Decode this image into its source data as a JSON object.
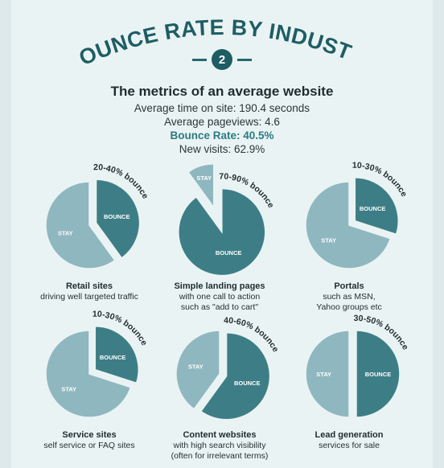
{
  "title": "BOUNCE RATE BY INDUSTRY",
  "badge": "2",
  "metrics": {
    "heading": "The metrics of an average website",
    "time_on_site": "Average time on site: 190.4 seconds",
    "pageviews": "Average pageviews: 4.6",
    "bounce_rate": "Bounce Rate: 40.5%",
    "new_visits": "New visits: 62.9%"
  },
  "colors": {
    "bounce": "#3d7e86",
    "stay": "#8fb7bf",
    "background": "#eaf3f3",
    "accent": "#2b7b82"
  },
  "chart_data": {
    "type": "pie",
    "slice_labels": {
      "bounce": "BOUNCE",
      "stay": "STAY"
    },
    "charts": [
      {
        "name": "Retail sites",
        "desc": [
          "driving well targeted traffic"
        ],
        "range_label": "20-40% bounce",
        "bounce_low": 20,
        "bounce_high": 40,
        "bounce": 40,
        "stay": 60
      },
      {
        "name": "Simple landing pages",
        "desc": [
          "with one call to action",
          "such as \"add to cart\""
        ],
        "range_label": "70-90% bounce",
        "bounce_low": 70,
        "bounce_high": 90,
        "bounce": 90,
        "stay": 10
      },
      {
        "name": "Portals",
        "desc": [
          "such as MSN,",
          "Yahoo groups etc"
        ],
        "range_label": "10-30% bounce",
        "bounce_low": 10,
        "bounce_high": 30,
        "bounce": 30,
        "stay": 70
      },
      {
        "name": "Service sites",
        "desc": [
          "self service or FAQ sites"
        ],
        "range_label": "10-30% bounce",
        "bounce_low": 10,
        "bounce_high": 30,
        "bounce": 30,
        "stay": 70
      },
      {
        "name": "Content websites",
        "desc": [
          "with high search visibility",
          "(often for irrelevant terms)"
        ],
        "range_label": "40-60% bounce",
        "bounce_low": 40,
        "bounce_high": 60,
        "bounce": 60,
        "stay": 40
      },
      {
        "name": "Lead generation",
        "desc": [
          "services for sale"
        ],
        "range_label": "30-50% bounce",
        "bounce_low": 30,
        "bounce_high": 50,
        "bounce": 50,
        "stay": 50
      }
    ]
  }
}
